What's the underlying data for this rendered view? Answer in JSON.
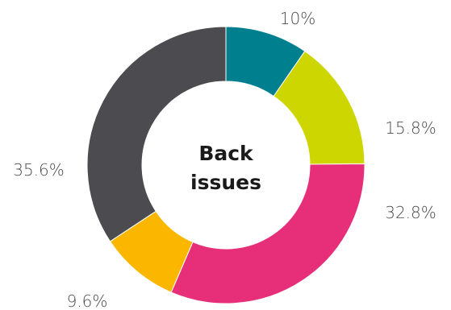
{
  "chart_data": {
    "type": "pie",
    "variant": "donut",
    "center_title": [
      "Back",
      "issues"
    ],
    "slices": [
      {
        "value": 10.0,
        "label": "10%",
        "color": "#00808f"
      },
      {
        "value": 15.8,
        "label": "15.8%",
        "color": "#cdd600"
      },
      {
        "value": 32.8,
        "label": "32.8%",
        "color": "#e62f78"
      },
      {
        "value": 9.6,
        "label": "9.6%",
        "color": "#fbb600"
      },
      {
        "value": 35.6,
        "label": "35.6%",
        "color": "#4b4b50"
      }
    ],
    "start_angle": "12 o'clock",
    "direction": "clockwise",
    "legend": "none"
  }
}
